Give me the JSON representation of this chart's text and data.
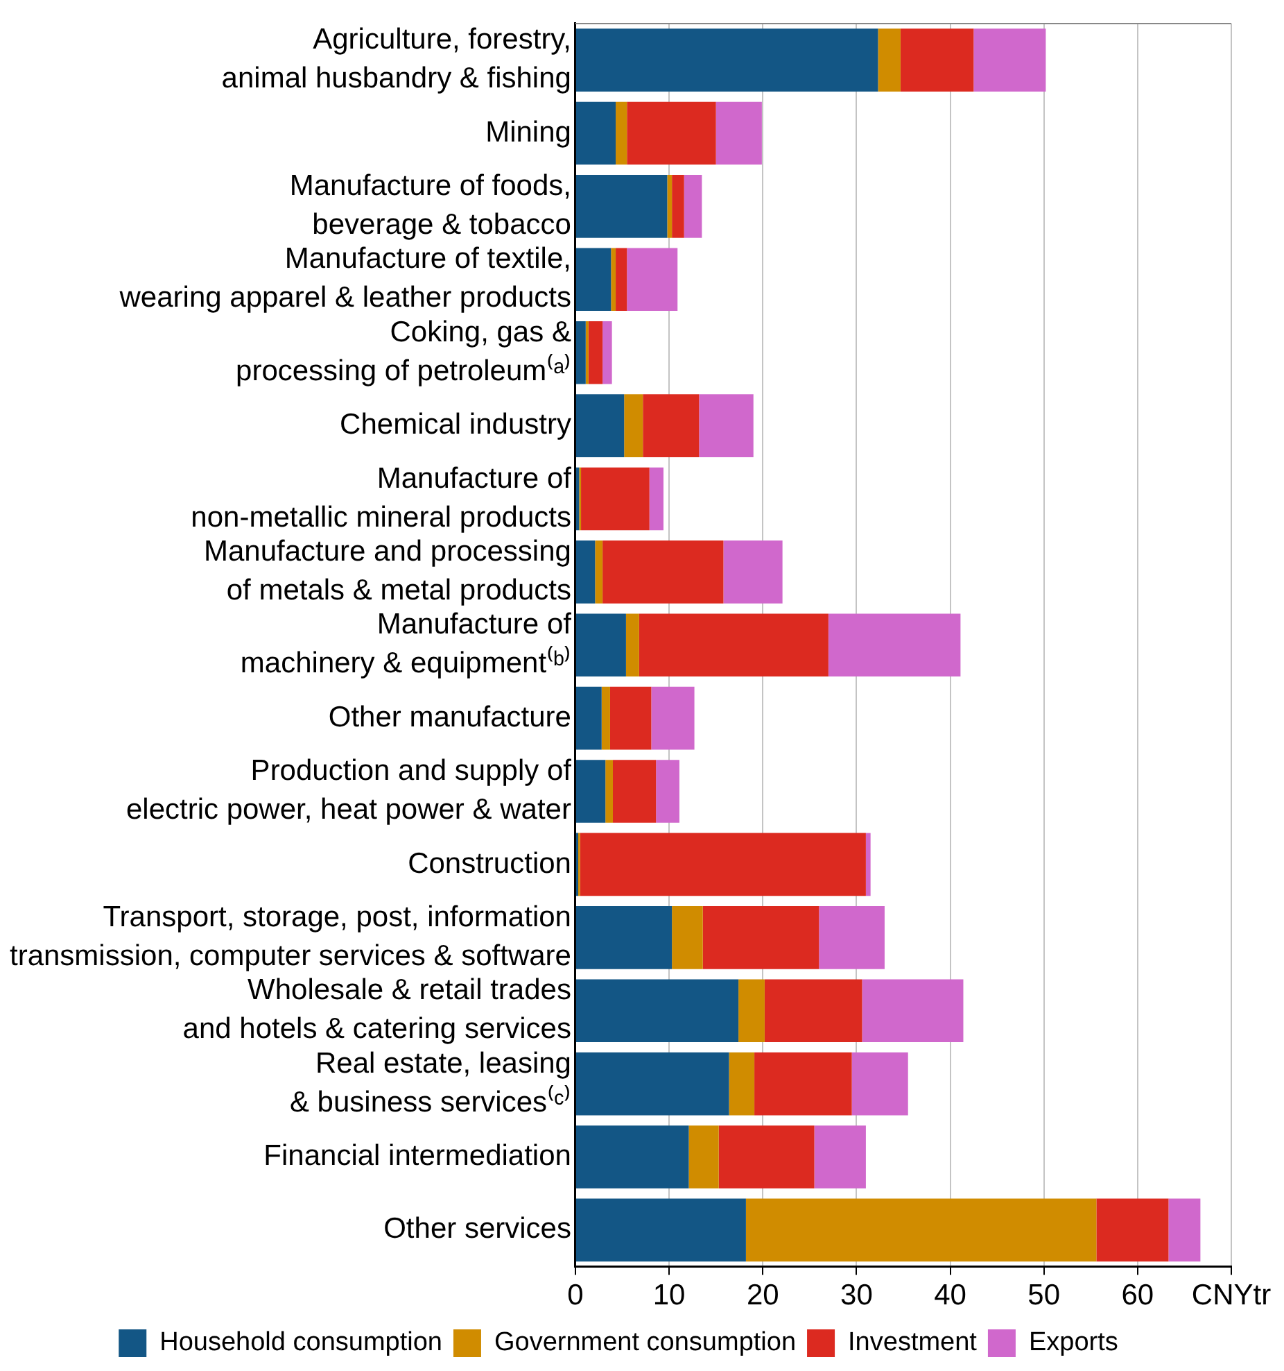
{
  "chart_data": {
    "type": "bar",
    "orientation": "horizontal",
    "stacked": true,
    "categories": [
      "Agriculture, forestry,\nanimal husbandry & fishing",
      "Mining",
      "Manufacture of foods,\nbeverage & tobacco",
      "Manufacture of textile,\nwearing apparel & leather products",
      "Coking, gas &\nprocessing of petroleum⁽ᵃ⁾",
      "Chemical industry",
      "Manufacture of\nnon-metallic mineral products",
      "Manufacture and processing\nof metals & metal products",
      "Manufacture of\nmachinery & equipment⁽ᵇ⁾",
      "Other manufacture",
      "Production and supply of\nelectric power, heat power & water",
      "Construction",
      "Transport, storage, post, information\ntransmission, computer services & software",
      "Wholesale & retail trades\nand hotels & catering services",
      "Real estate, leasing\n& business services⁽ᶜ⁾",
      "Financial intermediation",
      "Other services"
    ],
    "series": [
      {
        "name": "Household consumption",
        "color": "#135685",
        "values": [
          32.3,
          4.3,
          9.8,
          3.8,
          1.1,
          5.2,
          0.4,
          2.1,
          5.4,
          2.8,
          3.2,
          0.3,
          10.3,
          17.4,
          16.4,
          12.1,
          18.2
        ]
      },
      {
        "name": "Government consumption",
        "color": "#d08c00",
        "values": [
          2.4,
          1.2,
          0.5,
          0.5,
          0.3,
          2.0,
          0.2,
          0.8,
          1.4,
          0.9,
          0.8,
          0.2,
          3.3,
          2.8,
          2.7,
          3.2,
          37.4
        ]
      },
      {
        "name": "Investment",
        "color": "#dc2a20",
        "values": [
          7.8,
          9.5,
          1.3,
          1.2,
          1.5,
          6.0,
          7.3,
          12.9,
          20.2,
          4.4,
          4.6,
          30.5,
          12.4,
          10.4,
          10.4,
          10.2,
          7.7
        ]
      },
      {
        "name": "Exports",
        "color": "#d068cc",
        "values": [
          7.7,
          4.9,
          1.9,
          5.4,
          1.0,
          5.8,
          1.5,
          6.3,
          14.1,
          4.6,
          2.5,
          0.5,
          7.0,
          10.8,
          6.0,
          5.5,
          3.4
        ]
      }
    ],
    "xlim": [
      0,
      70
    ],
    "xticks": [
      0,
      10,
      20,
      30,
      40,
      50,
      60,
      {
        "value": 70,
        "label": "CNYtr"
      }
    ],
    "grid": "x",
    "legend": "bottom"
  }
}
